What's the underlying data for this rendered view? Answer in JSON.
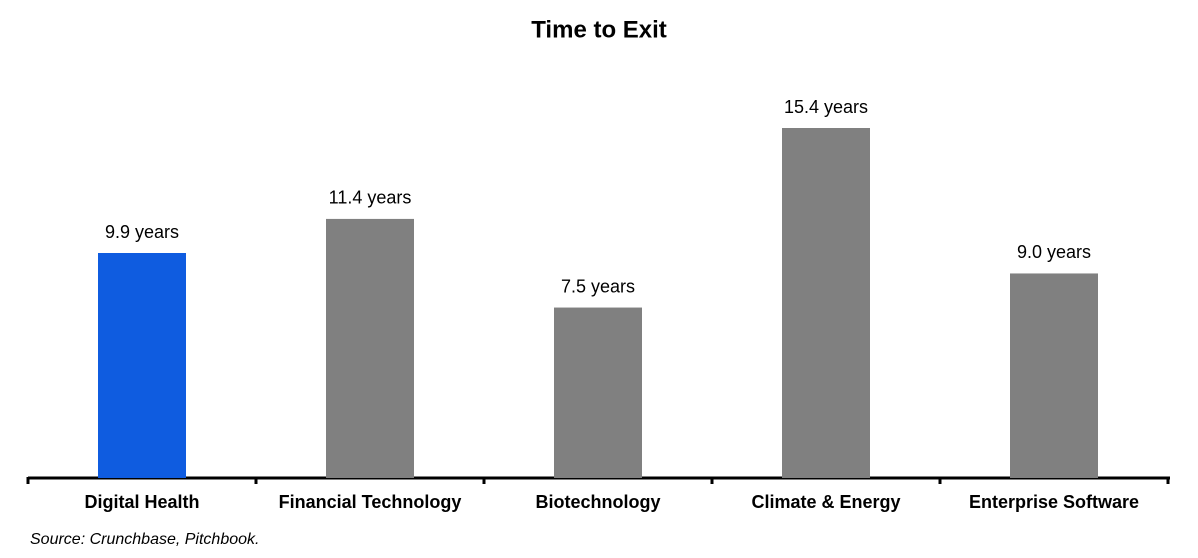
{
  "chart_data": {
    "type": "bar",
    "title": "Time to Exit",
    "categories": [
      "Digital Health",
      "Financial Technology",
      "Biotechnology",
      "Climate & Energy",
      "Enterprise Software"
    ],
    "values": [
      9.9,
      11.4,
      7.5,
      15.4,
      9.0
    ],
    "value_labels": [
      "9.9 years",
      "11.4 years",
      "7.5 years",
      "15.4 years",
      "9.0 years"
    ],
    "colors": [
      "#0f5ce0",
      "#808080",
      "#808080",
      "#808080",
      "#808080"
    ],
    "source": "Source: Crunchbase, Pitchbook."
  }
}
